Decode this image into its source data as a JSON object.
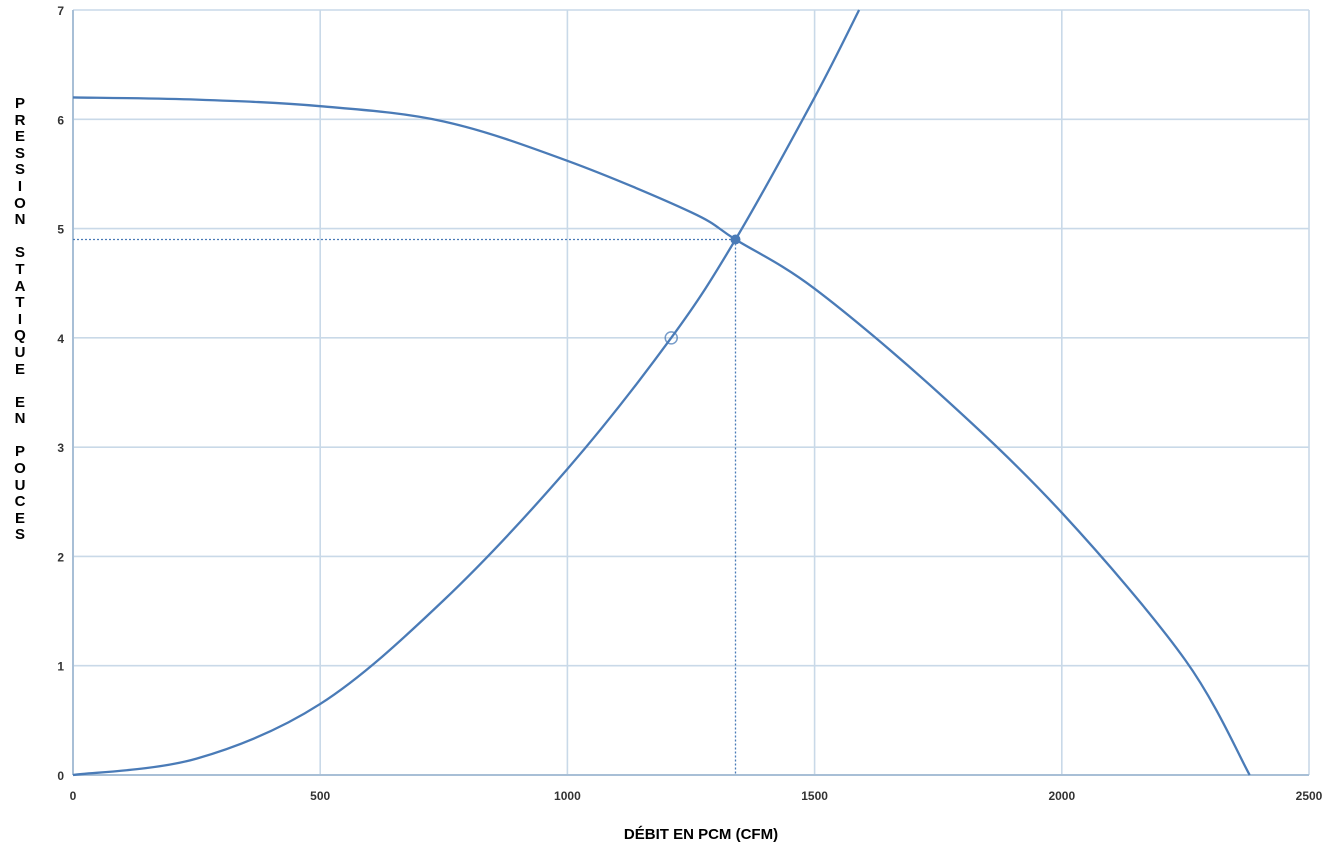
{
  "chart_data": {
    "type": "line",
    "title": "",
    "xlabel": "DÉBIT EN PCM (CFM)",
    "ylabel": "PRESSION STATIQUE EN POUCES",
    "xlim": [
      0,
      2500
    ],
    "ylim": [
      0,
      7
    ],
    "x_ticks": [
      "0",
      "500",
      "1000",
      "1500",
      "2000",
      "2500"
    ],
    "y_ticks": [
      "0",
      "1",
      "2",
      "3",
      "4",
      "5",
      "6",
      "7"
    ],
    "grid": true,
    "legend": "none",
    "series": [
      {
        "x": [
          0,
          250,
          500,
          750,
          1000,
          1250,
          1340,
          1500,
          1750,
          2000,
          2250,
          2380
        ],
        "y": [
          6.2,
          6.18,
          6.12,
          5.98,
          5.62,
          5.15,
          4.9,
          4.45,
          3.5,
          2.4,
          1.05,
          0.0
        ]
      },
      {
        "x": [
          0,
          250,
          500,
          750,
          1000,
          1210,
          1340,
          1500,
          1590
        ],
        "y": [
          0.0,
          0.15,
          0.65,
          1.6,
          2.8,
          4.0,
          4.9,
          6.2,
          7.0
        ]
      }
    ],
    "points": [
      {
        "x": 1340,
        "y": 4.9,
        "style": "filled"
      },
      {
        "x": 1210,
        "y": 4.0,
        "style": "hollow"
      }
    ],
    "reference_lines": {
      "x": 1340,
      "y": 4.9,
      "style": "dotted"
    },
    "colors": {
      "curve": "#4a7bb7",
      "grid": "#c9d9e8",
      "axis": "#a8bfd6",
      "tick_text": "#333333",
      "title_text": "#000000"
    }
  }
}
